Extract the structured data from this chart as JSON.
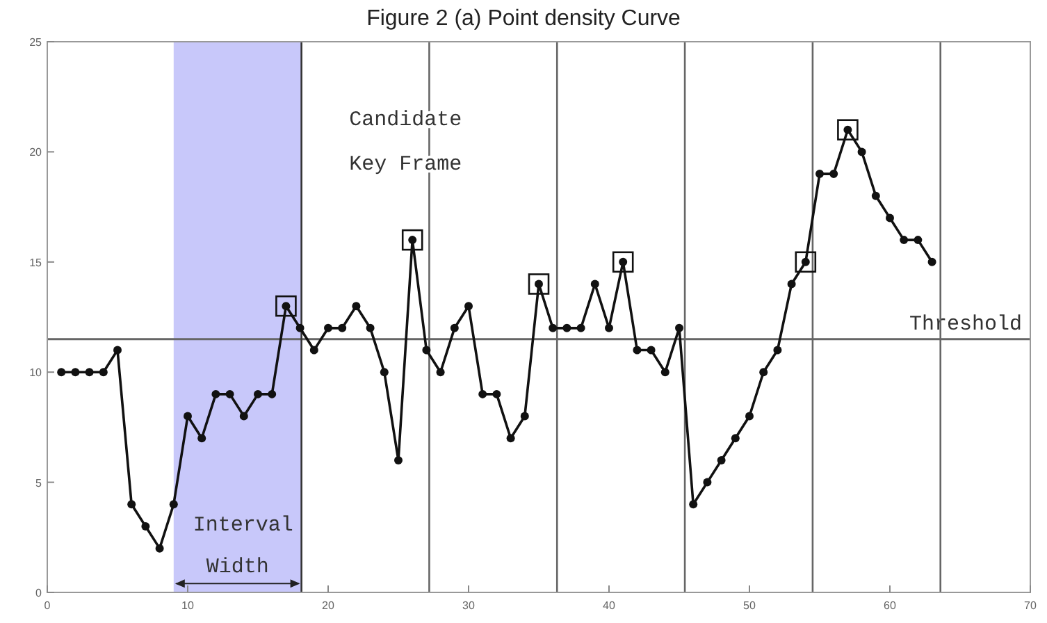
{
  "chart_data": {
    "type": "line",
    "title": "Figure 2 (a) Point density Curve",
    "annotations": [
      "Candidate Key Frame"
    ],
    "xlim": [
      0,
      70
    ],
    "xticks": [
      0,
      10,
      20,
      30,
      40,
      50,
      60,
      70
    ],
    "ylim": [
      0,
      25
    ],
    "yticks": [
      0,
      5,
      10,
      15,
      20,
      25
    ],
    "marker": "circle",
    "line_style": "solid",
    "grid": false,
    "series": [
      {
        "color": "#111111",
        "x": [
          1,
          2,
          3,
          4,
          5,
          6,
          7,
          8,
          9,
          10,
          11,
          12,
          13,
          14,
          15,
          16,
          17,
          18,
          19,
          20,
          21,
          22,
          23,
          24,
          25,
          26,
          27,
          28,
          29,
          30,
          31,
          32,
          33,
          34,
          35,
          36,
          37,
          38,
          39,
          40,
          41,
          42,
          43,
          44,
          45,
          46,
          47,
          48,
          49,
          50,
          51,
          52,
          53,
          54,
          55,
          56,
          57,
          58,
          59,
          60,
          61,
          62,
          63
        ],
        "values": [
          10,
          10,
          10,
          10,
          11,
          4,
          3,
          2,
          4,
          8,
          7,
          9,
          9,
          8,
          9,
          9,
          13,
          12,
          11,
          12,
          12,
          13,
          12,
          10,
          6,
          16,
          11,
          10,
          12,
          13,
          9,
          9,
          7,
          8,
          14,
          12,
          12,
          12,
          14,
          12,
          15,
          11,
          11,
          10,
          12,
          4,
          5,
          6,
          7,
          8,
          10,
          11,
          14,
          15,
          19,
          19,
          21,
          20,
          18,
          17,
          16,
          16,
          15
        ]
      },
      {
        "type": "scatter",
        "marker": "square",
        "color": "#111111",
        "x": [
          17,
          26,
          35,
          41,
          54,
          57
        ],
        "values": [
          13,
          16,
          14,
          15,
          15,
          21
        ]
      }
    ],
    "ref_lines": [
      {
        "axis": "y",
        "value": 11.5,
        "label": "Threshold",
        "color": "#666666"
      },
      {
        "axis": "x",
        "value": 18.1,
        "color": "#333333"
      },
      {
        "axis": "x",
        "value": 27.2,
        "color": "#666666"
      },
      {
        "axis": "x",
        "value": 36.3,
        "color": "#666666"
      },
      {
        "axis": "x",
        "value": 45.4,
        "color": "#666666"
      },
      {
        "axis": "x",
        "value": 54.5,
        "color": "#666666"
      },
      {
        "axis": "x",
        "value": 63.6,
        "color": "#666666"
      }
    ],
    "bands": [
      {
        "axis": "x",
        "from": 9,
        "to": 18.1,
        "label": "Interval Width",
        "color": "#c8c8fa"
      }
    ]
  }
}
